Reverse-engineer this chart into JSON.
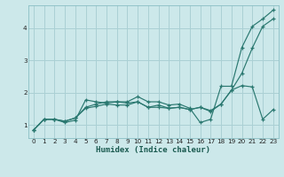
{
  "xlabel": "Humidex (Indice chaleur)",
  "bg_color": "#cce8ea",
  "grid_color": "#aad0d4",
  "line_color": "#2a7870",
  "xlim": [
    -0.5,
    23.5
  ],
  "ylim": [
    0.6,
    4.7
  ],
  "xticks": [
    0,
    1,
    2,
    3,
    4,
    5,
    6,
    7,
    8,
    9,
    10,
    11,
    12,
    13,
    14,
    15,
    16,
    17,
    18,
    19,
    20,
    21,
    22,
    23
  ],
  "yticks": [
    1,
    2,
    3,
    4
  ],
  "line1_x": [
    0,
    1,
    2,
    3,
    4,
    5,
    6,
    7,
    8,
    9,
    10,
    11,
    12,
    13,
    14,
    15,
    16,
    17,
    18,
    19,
    20,
    21,
    22,
    23
  ],
  "line1_y": [
    0.85,
    1.18,
    1.18,
    1.08,
    1.15,
    1.78,
    1.72,
    1.68,
    1.72,
    1.72,
    1.88,
    1.72,
    1.72,
    1.62,
    1.65,
    1.52,
    1.08,
    1.18,
    2.2,
    2.2,
    3.4,
    4.05,
    4.28,
    4.55
  ],
  "line2_x": [
    0,
    1,
    2,
    3,
    4,
    5,
    6,
    7,
    8,
    9,
    10,
    11,
    12,
    13,
    14,
    15,
    16,
    17,
    18,
    19,
    20,
    21,
    22,
    23
  ],
  "line2_y": [
    0.85,
    1.18,
    1.18,
    1.12,
    1.22,
    1.55,
    1.65,
    1.72,
    1.72,
    1.68,
    1.72,
    1.55,
    1.62,
    1.52,
    1.55,
    1.48,
    1.55,
    1.42,
    1.65,
    2.08,
    2.6,
    3.38,
    4.05,
    4.28
  ],
  "line3_x": [
    0,
    1,
    2,
    3,
    4,
    5,
    6,
    7,
    8,
    9,
    10,
    11,
    12,
    13,
    14,
    15,
    16,
    17,
    18,
    19,
    20,
    21,
    22,
    23
  ],
  "line3_y": [
    0.85,
    1.18,
    1.18,
    1.12,
    1.22,
    1.52,
    1.58,
    1.65,
    1.62,
    1.62,
    1.72,
    1.55,
    1.55,
    1.52,
    1.55,
    1.48,
    1.55,
    1.45,
    1.65,
    2.08,
    2.22,
    2.18,
    1.18,
    1.48
  ]
}
